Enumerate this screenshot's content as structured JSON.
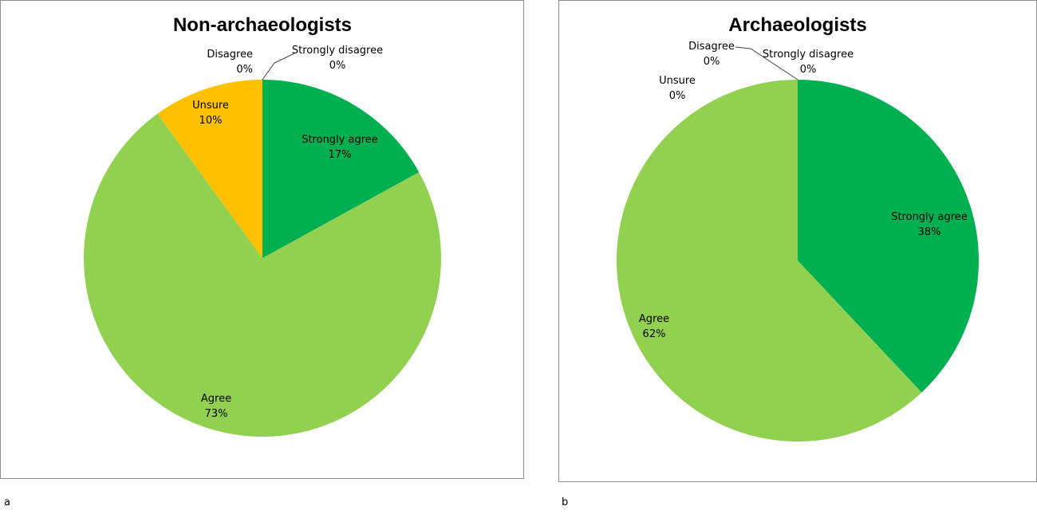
{
  "chart_data": [
    {
      "type": "pie",
      "title": "Non-archaeologists",
      "panel_label": "a",
      "categories": [
        "Strongly agree",
        "Agree",
        "Unsure",
        "Disagree",
        "Strongly disagree"
      ],
      "values": [
        17,
        73,
        10,
        0,
        0
      ],
      "value_labels": [
        "17%",
        "73%",
        "10%",
        "0%",
        "0%"
      ],
      "colors": [
        "#00B050",
        "#92D050",
        "#FFC000",
        "#FF6600",
        "#C00000"
      ],
      "legend": "none"
    },
    {
      "type": "pie",
      "title": "Archaeologists",
      "panel_label": "b",
      "categories": [
        "Strongly agree",
        "Agree",
        "Unsure",
        "Disagree",
        "Strongly disagree"
      ],
      "values": [
        38,
        62,
        0,
        0,
        0
      ],
      "value_labels": [
        "38%",
        "62%",
        "0%",
        "0%",
        "0%"
      ],
      "colors": [
        "#00B050",
        "#92D050",
        "#FFC000",
        "#FF6600",
        "#C00000"
      ],
      "legend": "none"
    }
  ]
}
